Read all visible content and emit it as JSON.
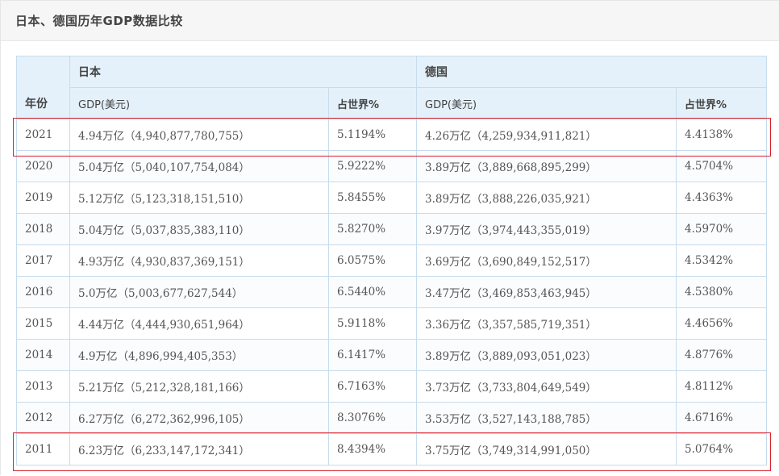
{
  "card": {
    "title": "日本、德国历年GDP数据比较"
  },
  "table": {
    "header": {
      "year": "年份",
      "japan": "日本",
      "germany": "德国",
      "gdp_usd": "GDP(美元)",
      "world_share": "占世界%"
    },
    "rows": [
      {
        "year": "2021",
        "jp_gdp": "4.94万亿（4,940,877,780,755）",
        "jp_share": "5.1194%",
        "de_gdp": "4.26万亿（4,259,934,911,821）",
        "de_share": "4.4138%"
      },
      {
        "year": "2020",
        "jp_gdp": "5.04万亿（5,040,107,754,084）",
        "jp_share": "5.9222%",
        "de_gdp": "3.89万亿（3,889,668,895,299）",
        "de_share": "4.5704%"
      },
      {
        "year": "2019",
        "jp_gdp": "5.12万亿（5,123,318,151,510）",
        "jp_share": "5.8455%",
        "de_gdp": "3.89万亿（3,888,226,035,921）",
        "de_share": "4.4363%"
      },
      {
        "year": "2018",
        "jp_gdp": "5.04万亿（5,037,835,383,110）",
        "jp_share": "5.8270%",
        "de_gdp": "3.97万亿（3,974,443,355,019）",
        "de_share": "4.5970%"
      },
      {
        "year": "2017",
        "jp_gdp": "4.93万亿（4,930,837,369,151）",
        "jp_share": "6.0575%",
        "de_gdp": "3.69万亿（3,690,849,152,517）",
        "de_share": "4.5342%"
      },
      {
        "year": "2016",
        "jp_gdp": "5.0万亿（5,003,677,627,544）",
        "jp_share": "6.5440%",
        "de_gdp": "3.47万亿（3,469,853,463,945）",
        "de_share": "4.5380%"
      },
      {
        "year": "2015",
        "jp_gdp": "4.44万亿（4,444,930,651,964）",
        "jp_share": "5.9118%",
        "de_gdp": "3.36万亿（3,357,585,719,351）",
        "de_share": "4.4656%"
      },
      {
        "year": "2014",
        "jp_gdp": "4.9万亿（4,896,994,405,353）",
        "jp_share": "6.1417%",
        "de_gdp": "3.89万亿（3,889,093,051,023）",
        "de_share": "4.8776%"
      },
      {
        "year": "2013",
        "jp_gdp": "5.21万亿（5,212,328,181,166）",
        "jp_share": "6.7163%",
        "de_gdp": "3.73万亿（3,733,804,649,549）",
        "de_share": "4.8112%"
      },
      {
        "year": "2012",
        "jp_gdp": "6.27万亿（6,272,362,996,105）",
        "jp_share": "8.3076%",
        "de_gdp": "3.53万亿（3,527,143,188,785）",
        "de_share": "4.6716%"
      },
      {
        "year": "2011",
        "jp_gdp": "6.23万亿（6,233,147,172,341）",
        "jp_share": "8.4394%",
        "de_gdp": "3.75万亿（3,749,314,991,050）",
        "de_share": "5.0764%"
      }
    ]
  },
  "annotations": {
    "highlight_color": "#d9232e"
  }
}
